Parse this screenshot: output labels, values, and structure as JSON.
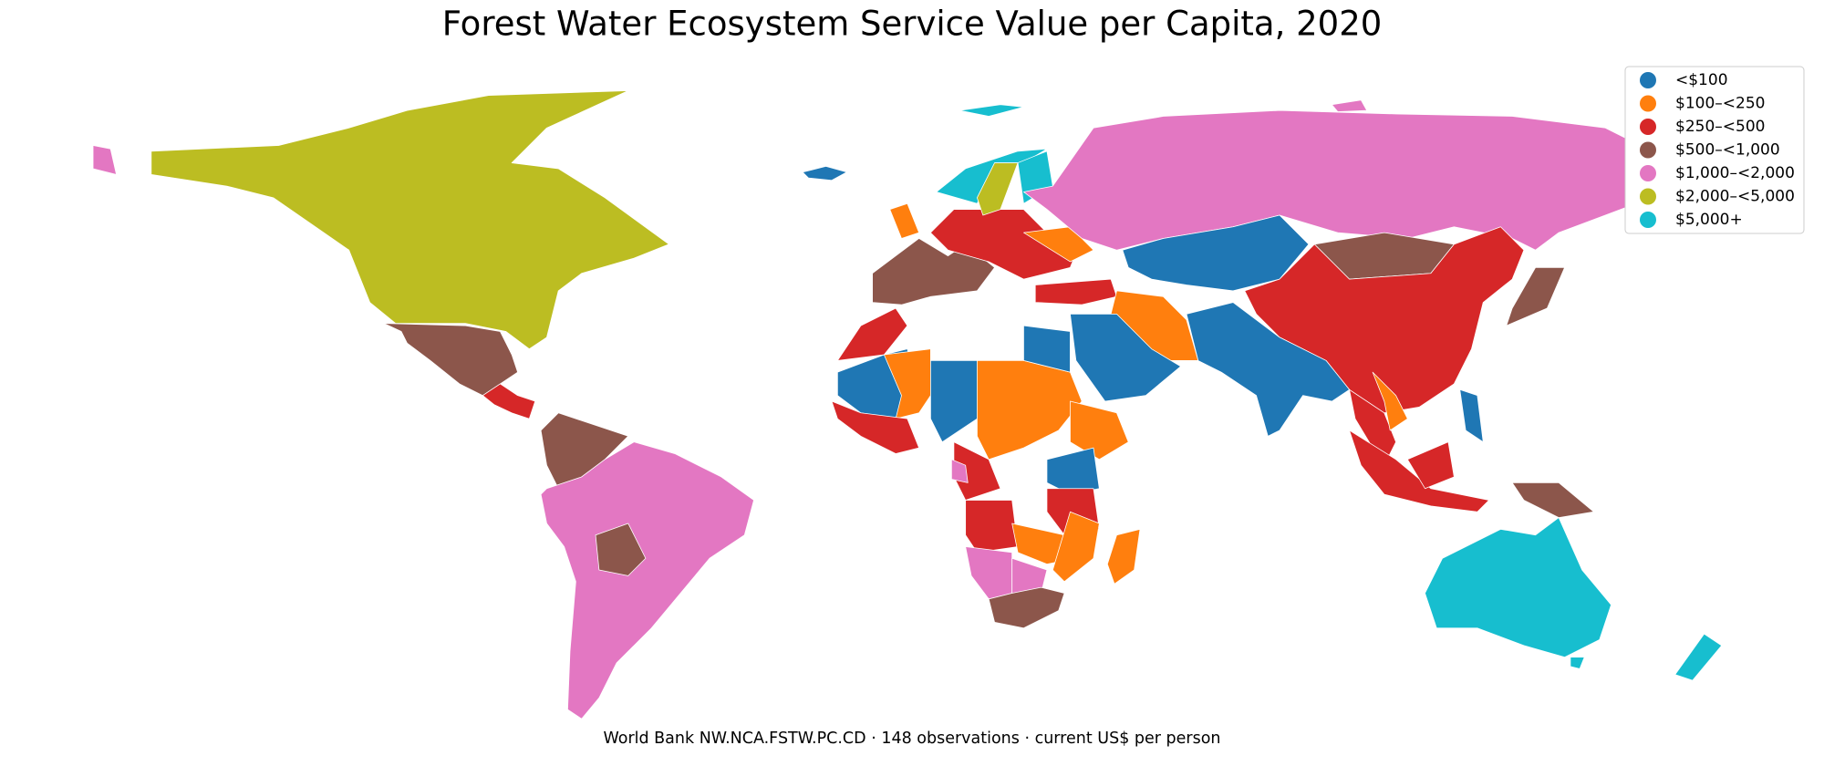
{
  "title": "Forest Water Ecosystem Service Value per Capita, 2020",
  "legend": {
    "items": [
      {
        "label": "<$100",
        "color": "#1f77b4"
      },
      {
        "label": "$100–<250",
        "color": "#ff7f0e"
      },
      {
        "label": "$250–<500",
        "color": "#d62728"
      },
      {
        "label": "$500–<1,000",
        "color": "#8c564b"
      },
      {
        "label": "$1,000–<2,000",
        "color": "#e377c2"
      },
      {
        "label": "$2,000–<5,000",
        "color": "#bcbd22"
      },
      {
        "label": "$5,000+",
        "color": "#17becf"
      }
    ]
  },
  "caption": "World Bank NW.NCA.FSTW.PC.CD · 148 observations · current US$ per person"
}
